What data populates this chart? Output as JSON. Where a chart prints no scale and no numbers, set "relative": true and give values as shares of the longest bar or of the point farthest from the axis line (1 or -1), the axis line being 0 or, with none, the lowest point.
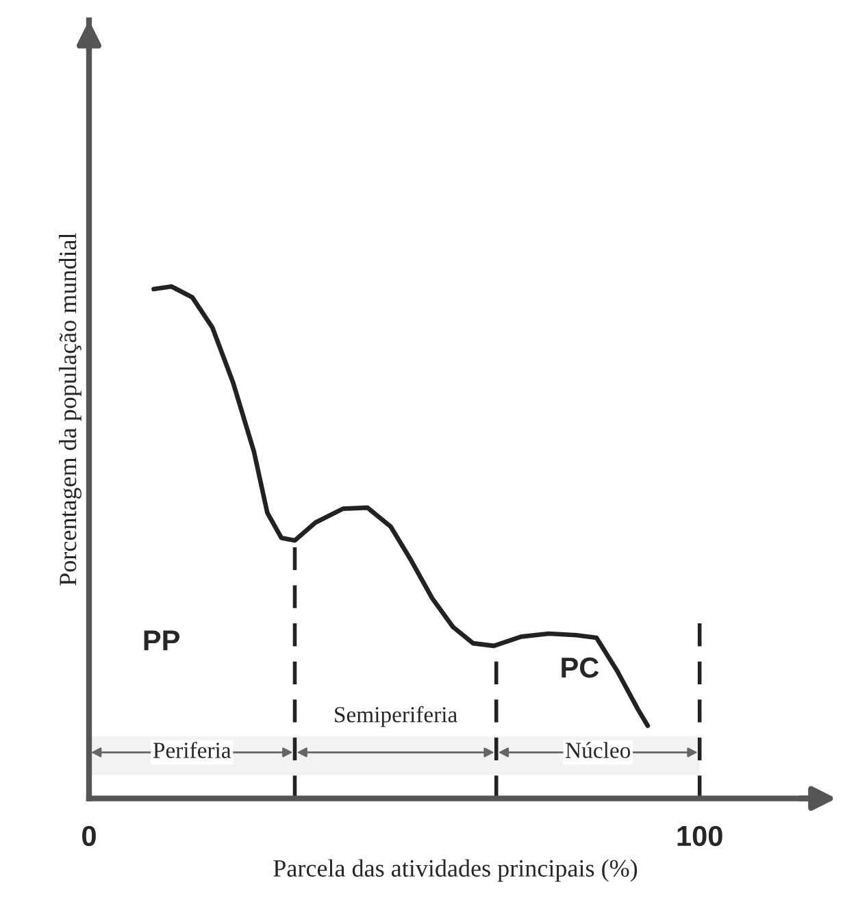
{
  "chart_data": {
    "type": "line",
    "relative": true,
    "xlabel": "Parcela das atividades principais (%)",
    "ylabel": "Porcentagem da população mundial",
    "xlim": [
      0,
      120
    ],
    "xticks": [
      0,
      100
    ],
    "grid": false,
    "legend": false,
    "marker": "none",
    "line_style": "solid",
    "series": [
      {
        "color": "#222222",
        "x": [
          10.6,
          13.5,
          16.9,
          20.2,
          23.6,
          27.0,
          29.2,
          31.5,
          33.7,
          37.1,
          41.6,
          45.6,
          49.4,
          52.8,
          56.2,
          59.6,
          62.9,
          66.3,
          70.8,
          75.3,
          79.8,
          83.1,
          86.5,
          89.9,
          91.5
        ],
        "values": [
          0.995,
          1.0,
          0.979,
          0.92,
          0.812,
          0.678,
          0.558,
          0.509,
          0.504,
          0.539,
          0.566,
          0.568,
          0.531,
          0.464,
          0.391,
          0.335,
          0.303,
          0.298,
          0.316,
          0.322,
          0.319,
          0.314,
          0.249,
          0.174,
          0.142
        ]
      }
    ],
    "ref_lines": [
      {
        "axis": "x",
        "value": 33.7,
        "line_style": "dashed",
        "color": "#222222"
      },
      {
        "axis": "x",
        "value": 66.7,
        "line_style": "dashed",
        "color": "#222222"
      },
      {
        "axis": "x",
        "value": 100,
        "line_style": "dashed",
        "color": "#222222"
      }
    ],
    "bands": [
      {
        "axis": "x",
        "from": 0,
        "to": 33.7,
        "label": "Periferia"
      },
      {
        "axis": "x",
        "from": 33.7,
        "to": 66.7,
        "label": "Semiperiferia"
      },
      {
        "axis": "x",
        "from": 66.7,
        "to": 100,
        "label": "Núcleo"
      }
    ],
    "annotations": [
      "PP",
      "PC"
    ]
  }
}
